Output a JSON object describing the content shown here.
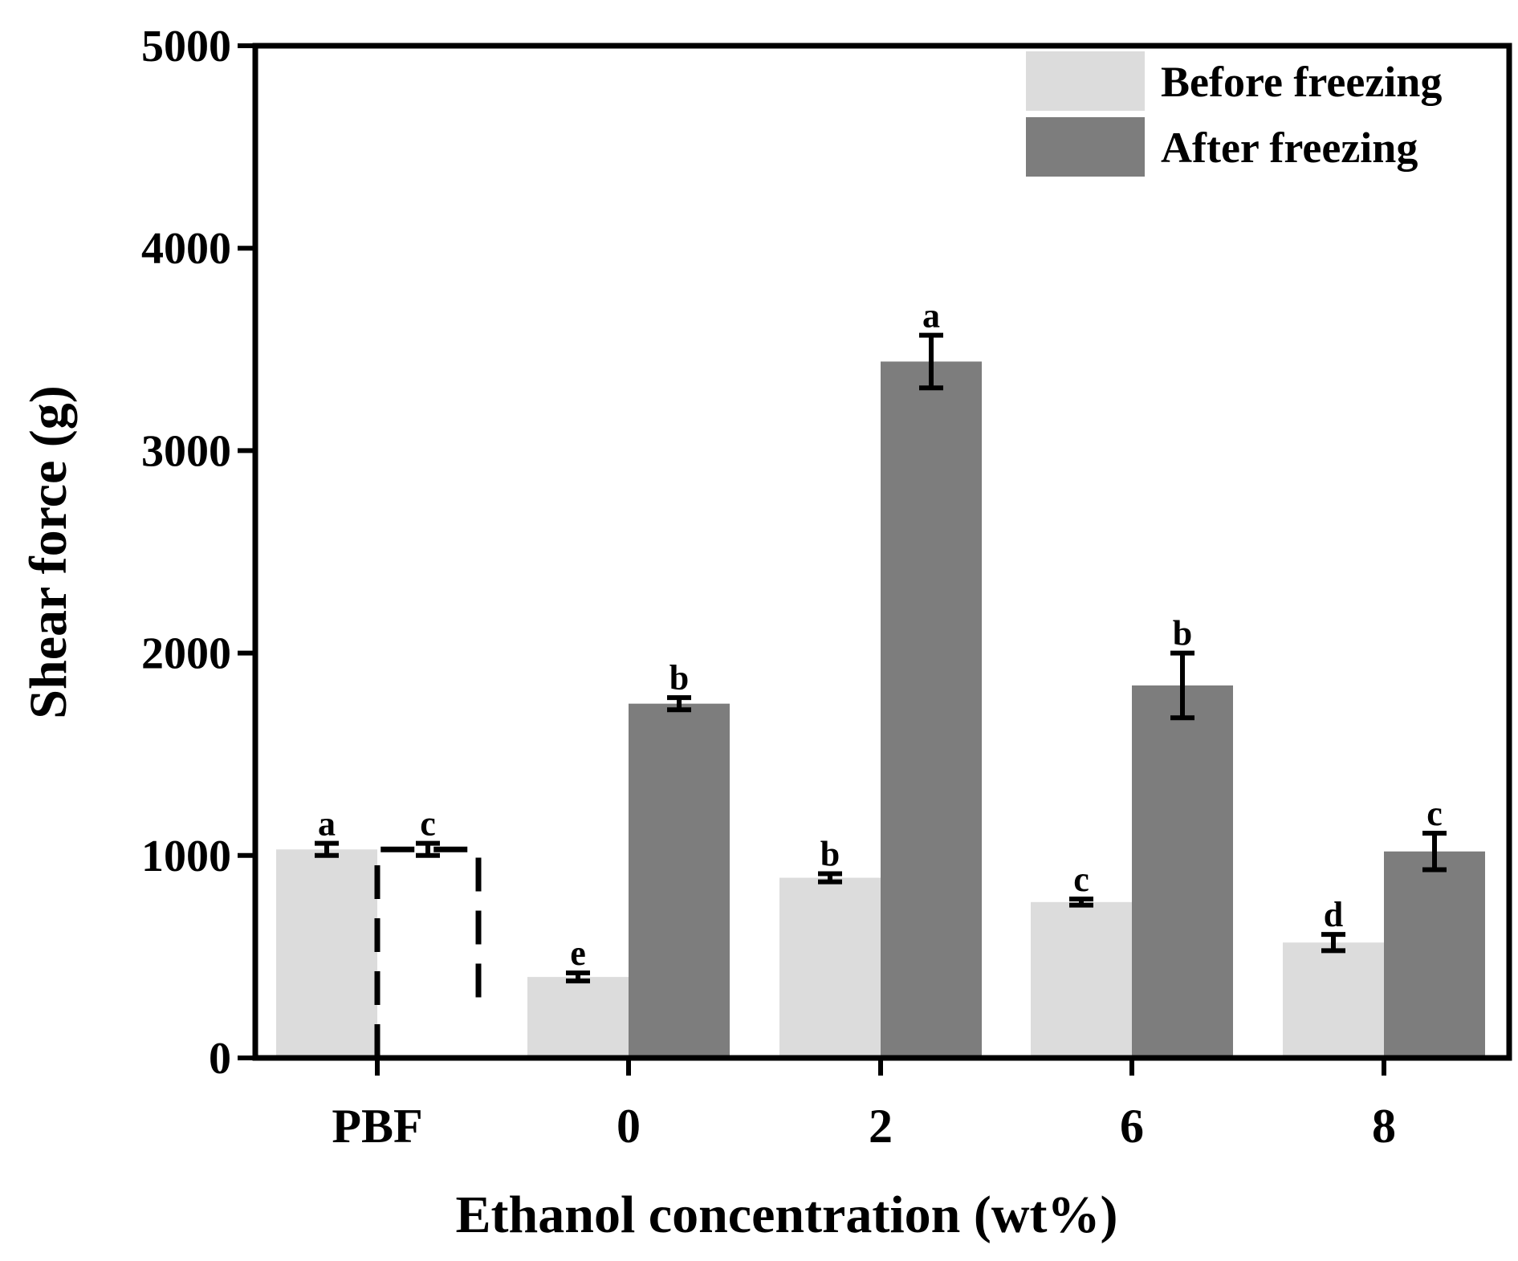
{
  "chart_data": {
    "type": "bar",
    "title": "",
    "xlabel": "Ethanol concentration (wt%)",
    "ylabel": "Shear force (g)",
    "ylim": [
      0,
      5000
    ],
    "yticks": [
      0,
      1000,
      2000,
      3000,
      4000,
      5000
    ],
    "categories": [
      "PBF",
      "0",
      "2",
      "6",
      "8"
    ],
    "legend_position": "top-right",
    "series": [
      {
        "name": "Before freezing",
        "color": "#dcdcdc",
        "values": [
          1030,
          400,
          890,
          770,
          570
        ],
        "errors": [
          30,
          20,
          20,
          15,
          40
        ],
        "letters": [
          "a",
          "e",
          "b",
          "c",
          "d"
        ]
      },
      {
        "name": "After freezing",
        "color": "#7d7d7d",
        "values": [
          1030,
          1750,
          3440,
          1840,
          1020
        ],
        "errors": [
          30,
          30,
          130,
          160,
          90
        ],
        "letters": [
          "c",
          "b",
          "a",
          "b",
          "c"
        ],
        "styles": [
          "dashed-outline",
          "solid",
          "solid",
          "solid",
          "solid"
        ]
      }
    ]
  }
}
